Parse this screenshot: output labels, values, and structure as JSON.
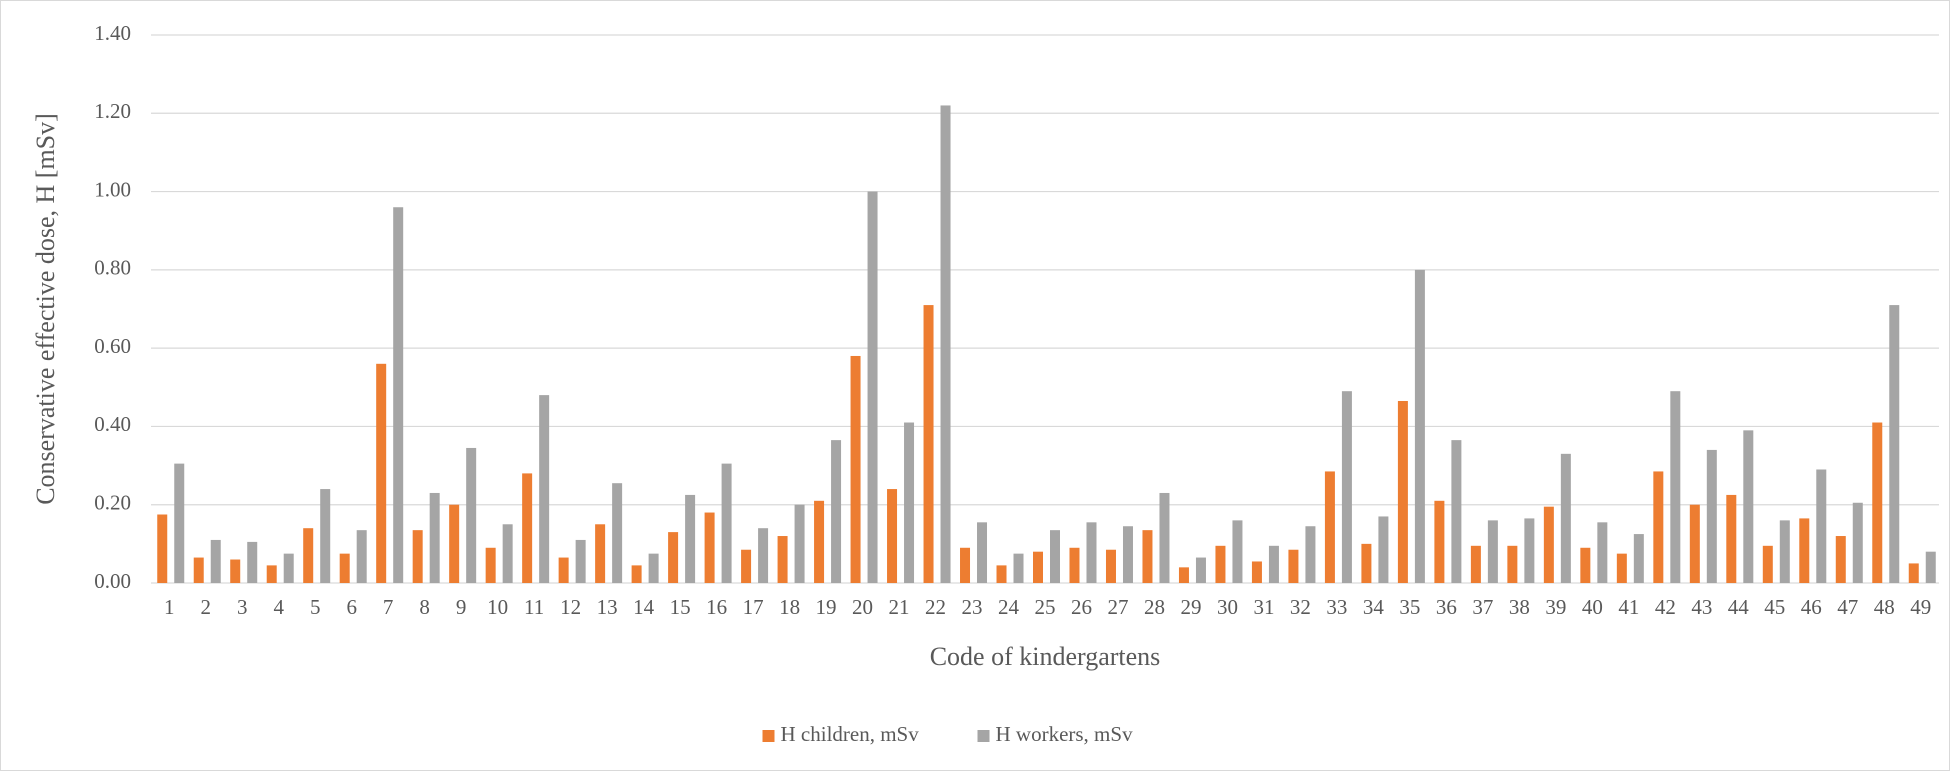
{
  "chart_data": {
    "type": "bar",
    "x_label": "Code of kindergartens",
    "y_label": "Conservative effective dose, H [mSv]",
    "categories": [
      "1",
      "2",
      "3",
      "4",
      "5",
      "6",
      "7",
      "8",
      "9",
      "10",
      "11",
      "12",
      "13",
      "14",
      "15",
      "16",
      "17",
      "18",
      "19",
      "20",
      "21",
      "22",
      "23",
      "24",
      "25",
      "26",
      "27",
      "28",
      "29",
      "30",
      "31",
      "32",
      "33",
      "34",
      "35",
      "36",
      "37",
      "38",
      "39",
      "40",
      "41",
      "42",
      "43",
      "44",
      "45",
      "46",
      "47",
      "48",
      "49"
    ],
    "series": [
      {
        "name": "H children, mSv",
        "color": "#ed7d31",
        "values": [
          0.175,
          0.065,
          0.06,
          0.045,
          0.14,
          0.075,
          0.56,
          0.135,
          0.2,
          0.09,
          0.28,
          0.065,
          0.15,
          0.045,
          0.13,
          0.18,
          0.085,
          0.12,
          0.21,
          0.58,
          0.24,
          0.71,
          0.09,
          0.045,
          0.08,
          0.09,
          0.085,
          0.135,
          0.04,
          0.095,
          0.055,
          0.085,
          0.285,
          0.1,
          0.465,
          0.21,
          0.095,
          0.095,
          0.195,
          0.09,
          0.075,
          0.285,
          0.2,
          0.225,
          0.095,
          0.165,
          0.12,
          0.41,
          0.05
        ]
      },
      {
        "name": "H workers, mSv",
        "color": "#a5a5a5",
        "values": [
          0.305,
          0.11,
          0.105,
          0.075,
          0.24,
          0.135,
          0.96,
          0.23,
          0.345,
          0.15,
          0.48,
          0.11,
          0.255,
          0.075,
          0.225,
          0.305,
          0.14,
          0.2,
          0.365,
          1.0,
          0.41,
          1.22,
          0.155,
          0.075,
          0.135,
          0.155,
          0.145,
          0.23,
          0.065,
          0.16,
          0.095,
          0.145,
          0.49,
          0.17,
          0.8,
          0.365,
          0.16,
          0.165,
          0.33,
          0.155,
          0.125,
          0.49,
          0.34,
          0.39,
          0.16,
          0.29,
          0.205,
          0.71,
          0.08
        ]
      }
    ],
    "ylim": [
      0,
      1.4
    ],
    "yticks": [
      {
        "value": 0,
        "label": "0.00"
      },
      {
        "value": 0.2,
        "label": "0.20"
      },
      {
        "value": 0.4,
        "label": "0.40"
      },
      {
        "value": 0.6,
        "label": "0.60"
      },
      {
        "value": 0.8,
        "label": "0.80"
      },
      {
        "value": 1.0,
        "label": "1.00"
      },
      {
        "value": 1.2,
        "label": "1.20"
      },
      {
        "value": 1.4,
        "label": "1.40"
      }
    ],
    "grid": true,
    "legend": "bottom"
  }
}
